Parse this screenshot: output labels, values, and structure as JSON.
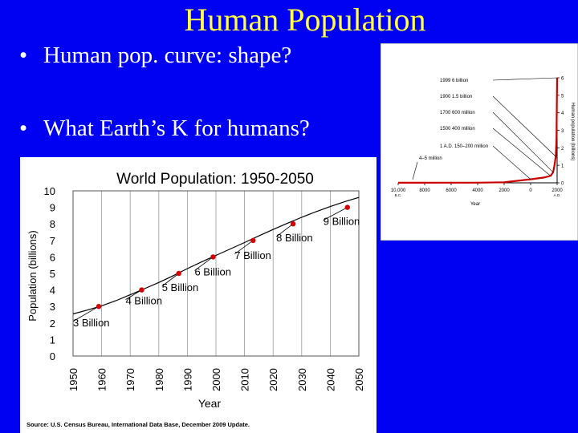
{
  "slide": {
    "title": "Human Population",
    "bullets": [
      "Human pop. curve: shape?",
      "What Earth’s K for humans?"
    ],
    "bullet_char": "•"
  },
  "colors": {
    "background": "#0000f2",
    "title": "#ffff44",
    "text": "#ffffff",
    "marker": "#d40000",
    "curve": "#cc0000"
  },
  "chart_data": [
    {
      "type": "line",
      "title": "World Population: 1950-2050",
      "xlabel": "Year",
      "ylabel": "Population (billions)",
      "xlim": [
        1950,
        2050
      ],
      "ylim": [
        0,
        10
      ],
      "x_ticks": [
        1950,
        1960,
        1970,
        1980,
        1990,
        2000,
        2010,
        2020,
        2030,
        2040,
        2050
      ],
      "y_ticks": [
        0,
        1,
        2,
        3,
        4,
        5,
        6,
        7,
        8,
        9,
        10
      ],
      "grid": "vertical",
      "series": [
        {
          "x": [
            1950,
            1955,
            1960,
            1965,
            1970,
            1975,
            1980,
            1985,
            1990,
            1995,
            2000,
            2005,
            2010,
            2015,
            2020,
            2025,
            2030,
            2035,
            2040,
            2045,
            2050
          ],
          "values": [
            2.55,
            2.78,
            3.04,
            3.35,
            3.71,
            4.08,
            4.45,
            4.86,
            5.29,
            5.7,
            6.09,
            6.48,
            6.87,
            7.27,
            7.66,
            8.04,
            8.4,
            8.74,
            9.05,
            9.34,
            9.6
          ]
        }
      ],
      "milestones": [
        {
          "x": 1959,
          "y": 3,
          "label": "3 Billion"
        },
        {
          "x": 1974,
          "y": 4,
          "label": "4 Billion"
        },
        {
          "x": 1987,
          "y": 5,
          "label": "5 Billion"
        },
        {
          "x": 1999,
          "y": 6,
          "label": "6 Billion"
        },
        {
          "x": 2013,
          "y": 7,
          "label": "7 Billion"
        },
        {
          "x": 2027,
          "y": 8,
          "label": "8 Billion"
        },
        {
          "x": 2046,
          "y": 9,
          "label": "9 Billion"
        }
      ],
      "source": "Source: U.S. Census Bureau, International Data Base, December 2009 Update."
    },
    {
      "type": "line",
      "xlabel": "Year",
      "ylabel": "Human population (billions)",
      "ylim": [
        0,
        6
      ],
      "y_ticks": [
        0,
        1,
        2,
        3,
        4,
        5,
        6
      ],
      "x_ticks": [
        "10,000",
        "8000",
        "6000",
        "4000",
        "2000",
        "0",
        "2000"
      ],
      "x_tick_sub": [
        "B.C.",
        "",
        "",
        "",
        "",
        "",
        "A.D."
      ],
      "x_values": [
        -10000,
        -8000,
        -6000,
        -4000,
        -2000,
        0,
        2000
      ],
      "series": [
        {
          "x": [
            -10000,
            -4000,
            -2000,
            0,
            1000,
            1500,
            1700,
            1800,
            1900,
            1950,
            1999
          ],
          "values": [
            0.005,
            0.01,
            0.03,
            0.2,
            0.3,
            0.4,
            0.6,
            1.0,
            1.5,
            2.5,
            6.0
          ]
        }
      ],
      "annotations": [
        "1999 6 billion",
        "1900 1.5 billion",
        "1700 600 million",
        "1500 400 million",
        "1 A.D. 150–200 million",
        "4–5 million"
      ]
    }
  ]
}
